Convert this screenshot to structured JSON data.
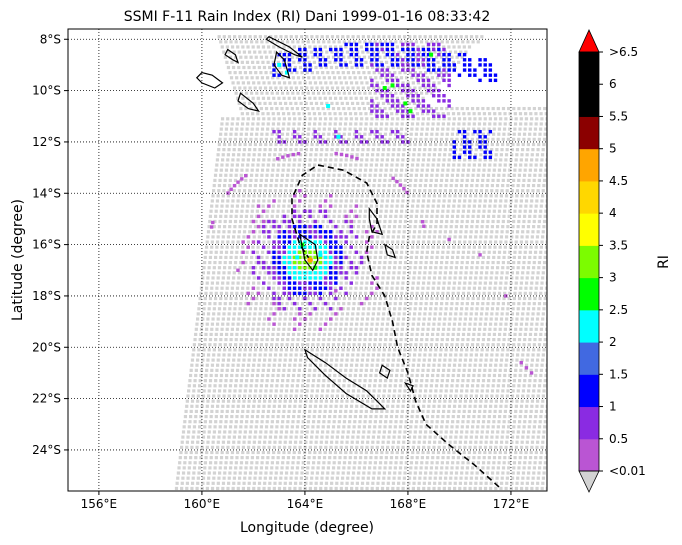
{
  "chart_data": {
    "type": "scatter",
    "title": "SSMI F-11 Rain Index (RI) Dani 1999-01-16 08:33:42",
    "xlabel": "Longitude (degree)",
    "ylabel": "Latitude (degree)",
    "xlim": [
      154.8,
      173.4
    ],
    "ylim": [
      -25.6,
      -7.6
    ],
    "x_ticks": [
      156,
      160,
      164,
      168,
      172
    ],
    "x_tick_labels": [
      "156°E",
      "160°E",
      "164°E",
      "168°E",
      "172°E"
    ],
    "y_ticks": [
      -8,
      -10,
      -12,
      -14,
      -16,
      -18,
      -20,
      -22,
      -24
    ],
    "y_tick_labels": [
      "8°S",
      "10°S",
      "12°S",
      "14°S",
      "16°S",
      "18°S",
      "20°S",
      "22°S",
      "24°S"
    ],
    "grid": "dotted",
    "swath_color": "#d3d3d3",
    "colorbar": {
      "label": "RI",
      "position": "right",
      "boundaries": [
        0.01,
        0.5,
        1,
        1.5,
        2,
        2.5,
        3,
        3.5,
        4,
        4.5,
        5,
        5.5,
        6,
        6.5
      ],
      "tick_labels": [
        "<0.01",
        "0.5",
        "1",
        "1.5",
        "2",
        "2.5",
        "3",
        "3.5",
        "4",
        "4.5",
        "5",
        "5.5",
        "6",
        ">6.5"
      ],
      "colors": [
        "#ba55d3",
        "#8a2be2",
        "#0000ff",
        "#4169e1",
        "#00ffff",
        "#00ff00",
        "#7cfc00",
        "#ffff00",
        "#ffd700",
        "#ffa500",
        "#8b0000",
        "#000000",
        "#000000"
      ],
      "under_color": "#d3d3d3",
      "over_color": "#ff0000"
    },
    "rain_cells": [
      {
        "lon": 164.2,
        "lat": -16.6,
        "ri": 4.9
      },
      {
        "lon": 164.0,
        "lat": -16.3,
        "ri": 3.2
      },
      {
        "lon": 163.9,
        "lat": -16.0,
        "ri": 2.7
      },
      {
        "lon": 164.4,
        "lat": -16.9,
        "ri": 2.6
      },
      {
        "lon": 163.7,
        "lat": -16.5,
        "ri": 2.2
      },
      {
        "lon": 164.6,
        "lat": -16.4,
        "ri": 2.1
      },
      {
        "lon": 167.1,
        "lat": -9.9,
        "ri": 2.8
      },
      {
        "lon": 167.4,
        "lat": -9.8,
        "ri": 2.9
      },
      {
        "lon": 167.9,
        "lat": -10.5,
        "ri": 2.6
      },
      {
        "lon": 168.1,
        "lat": -10.8,
        "ri": 2.8
      },
      {
        "lon": 168.9,
        "lat": -8.6,
        "ri": 2.6
      },
      {
        "lon": 163.3,
        "lat": -9.3,
        "ri": 2.2
      },
      {
        "lon": 163.0,
        "lat": -9.0,
        "ri": 2.1
      },
      {
        "lon": 165.3,
        "lat": -11.8,
        "ri": 2.1
      },
      {
        "lon": 164.9,
        "lat": -10.6,
        "ri": 2.1
      }
    ],
    "coastline_style": "solid black",
    "track_style": "dashed black"
  }
}
